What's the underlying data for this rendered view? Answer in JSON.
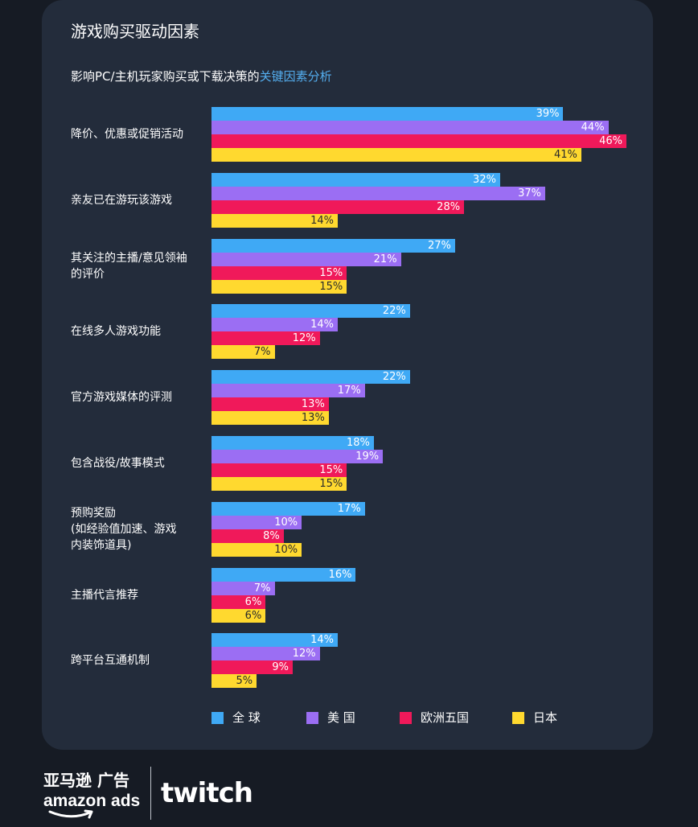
{
  "chart_data": {
    "type": "bar",
    "orientation": "horizontal",
    "title": "游戏购买驱动因素",
    "subtitle_plain": "影响PC/主机玩家购买或下载决策的",
    "subtitle_highlight": "关键因素分析",
    "categories": [
      "降价、优惠或促销活动",
      "亲友已在游玩该游戏",
      "其关注的主播/意见领袖\n的评价",
      "在线多人游戏功能",
      "官方游戏媒体的评测",
      "包含战役/故事模式",
      "预购奖励\n(如经验值加速、游戏\n内装饰道具)",
      "主播代言推荐",
      "跨平台互通机制"
    ],
    "series": [
      {
        "name": "全 球",
        "color": "#3fa9f5",
        "label_color": "#ffffff",
        "values": [
          39,
          32,
          27,
          22,
          22,
          18,
          17,
          16,
          14
        ]
      },
      {
        "name": "美 国",
        "color": "#9b6ef3",
        "label_color": "#ffffff",
        "values": [
          44,
          37,
          21,
          14,
          17,
          19,
          10,
          7,
          12
        ]
      },
      {
        "name": "欧洲五国",
        "color": "#f0195a",
        "label_color": "#ffffff",
        "values": [
          46,
          28,
          15,
          12,
          13,
          15,
          8,
          6,
          9
        ]
      },
      {
        "name": "日本",
        "color": "#ffd92f",
        "label_color": "#2b2b2b",
        "values": [
          41,
          14,
          15,
          7,
          13,
          15,
          10,
          6,
          5
        ]
      }
    ],
    "value_suffix": "%",
    "xlim": [
      0,
      46
    ],
    "grid": false,
    "legend_position": "bottom"
  },
  "branding": {
    "amazon_ads_cn": "亚马逊 广告",
    "amazon_ads_en": "amazon ads",
    "twitch": "twitch"
  }
}
